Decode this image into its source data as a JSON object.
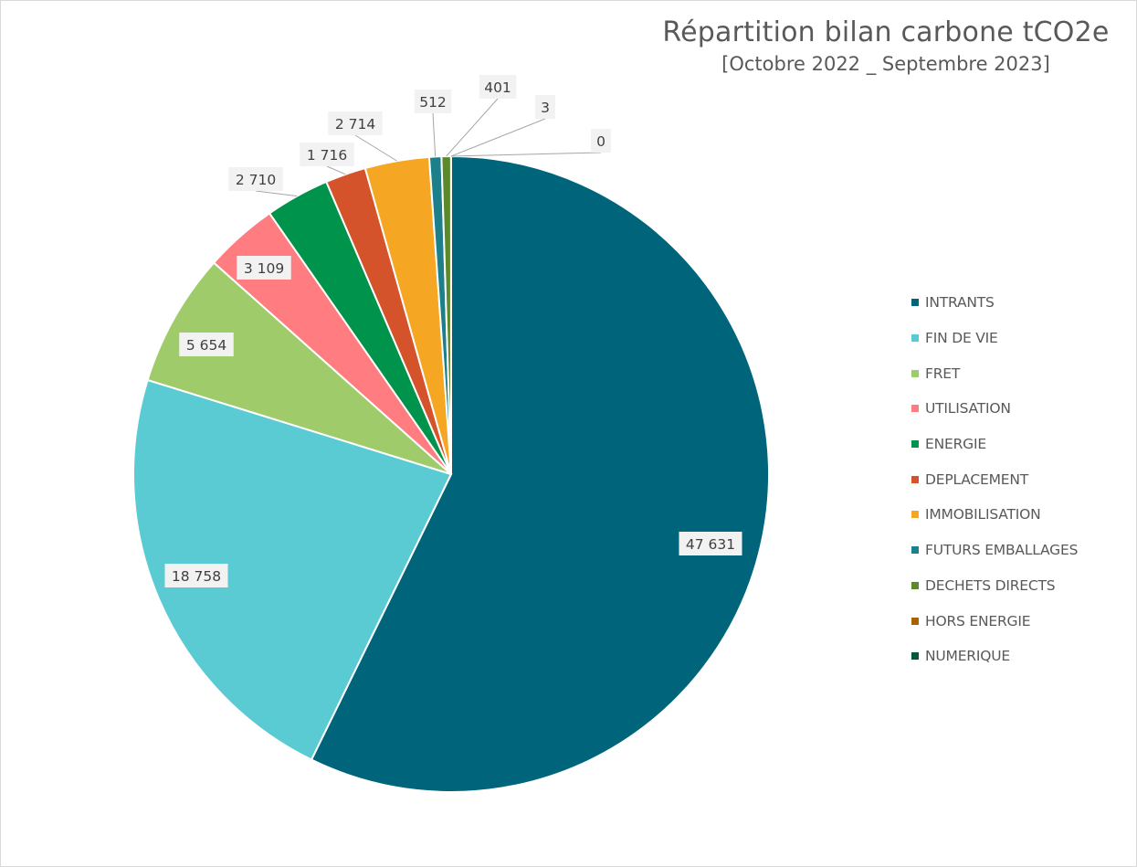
{
  "chart_data": {
    "type": "pie",
    "title": "Répartition bilan carbone tCO2e",
    "subtitle": "[Octobre 2022 _ Septembre 2023]",
    "legend_position": "right",
    "slices": [
      {
        "name": "INTRANTS",
        "value": 47631,
        "label": "47 631",
        "color": "#00657a"
      },
      {
        "name": "FIN DE VIE",
        "value": 18758,
        "label": "18 758",
        "color": "#5bcbd3"
      },
      {
        "name": "FRET",
        "value": 5654,
        "label": "5 654",
        "color": "#a0cb6a"
      },
      {
        "name": "UTILISATION",
        "value": 3109,
        "label": "3 109",
        "color": "#ff7c80"
      },
      {
        "name": "ENERGIE",
        "value": 2710,
        "label": "2 710",
        "color": "#00934b"
      },
      {
        "name": "DEPLACEMENT",
        "value": 1716,
        "label": "1 716",
        "color": "#d4532b"
      },
      {
        "name": "IMMOBILISATION",
        "value": 2714,
        "label": "2 714",
        "color": "#f5a623"
      },
      {
        "name": "FUTURS EMBALLAGES",
        "value": 512,
        "label": "512",
        "color": "#1d7f8a"
      },
      {
        "name": "DECHETS DIRECTS",
        "value": 401,
        "label": "401",
        "color": "#5a8a2a"
      },
      {
        "name": "HORS ENERGIE",
        "value": 3,
        "label": "3",
        "color": "#a66300"
      },
      {
        "name": "NUMERIQUE",
        "value": 0,
        "label": "0",
        "color": "#005a3a"
      }
    ]
  }
}
